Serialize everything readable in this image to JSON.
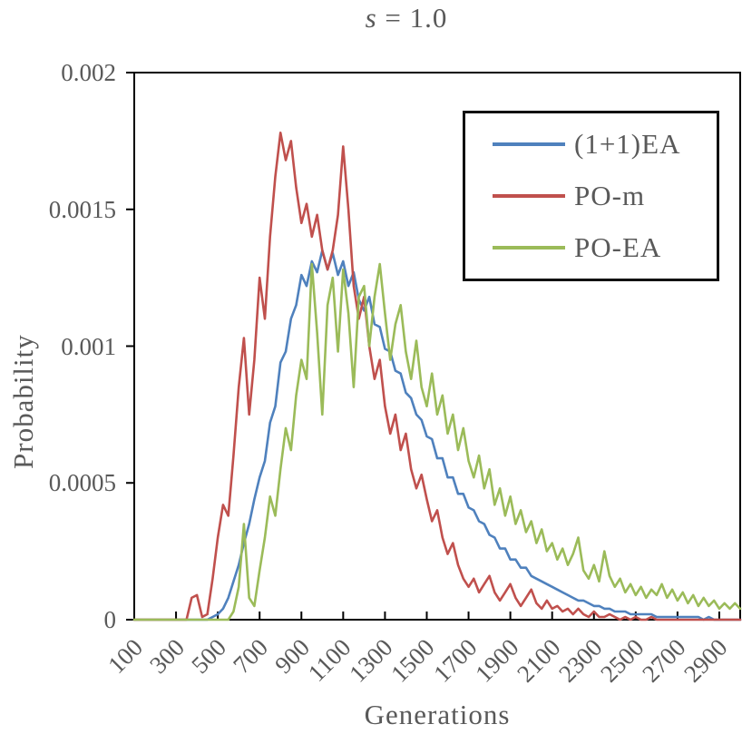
{
  "title": {
    "italic_part": "s",
    "rest_part": " = 1.0"
  },
  "colors": {
    "text": "#595959",
    "axis": "#000000",
    "background": "#ffffff"
  },
  "chart_data": {
    "type": "line",
    "title": "s = 1.0",
    "xlabel": "Generations",
    "ylabel": "Probability",
    "xlim": [
      100,
      3000
    ],
    "ylim": [
      0,
      0.002
    ],
    "grid": false,
    "legend_position": "top-right",
    "x_ticks": [
      100,
      300,
      500,
      700,
      900,
      1100,
      1300,
      1500,
      1700,
      1900,
      2100,
      2300,
      2500,
      2700,
      2900
    ],
    "y_ticks": {
      "values": [
        0,
        0.0005,
        0.001,
        0.0015,
        0.002
      ],
      "labels": [
        "0",
        "0.0005",
        "0.001",
        "0.0015",
        "0.002"
      ]
    },
    "value_scale": 1e-05,
    "x": [
      100,
      125,
      150,
      175,
      200,
      225,
      250,
      275,
      300,
      325,
      350,
      375,
      400,
      425,
      450,
      475,
      500,
      525,
      550,
      575,
      600,
      625,
      650,
      675,
      700,
      725,
      750,
      775,
      800,
      825,
      850,
      875,
      900,
      925,
      950,
      975,
      1000,
      1025,
      1050,
      1075,
      1100,
      1125,
      1150,
      1175,
      1200,
      1225,
      1250,
      1275,
      1300,
      1325,
      1350,
      1375,
      1400,
      1425,
      1450,
      1475,
      1500,
      1525,
      1550,
      1575,
      1600,
      1625,
      1650,
      1675,
      1700,
      1725,
      1750,
      1775,
      1800,
      1825,
      1850,
      1875,
      1900,
      1925,
      1950,
      1975,
      2000,
      2025,
      2050,
      2075,
      2100,
      2125,
      2150,
      2175,
      2200,
      2225,
      2250,
      2275,
      2300,
      2325,
      2350,
      2375,
      2400,
      2425,
      2450,
      2475,
      2500,
      2525,
      2550,
      2575,
      2600,
      2625,
      2650,
      2675,
      2700,
      2725,
      2750,
      2775,
      2800,
      2825,
      2850,
      2875,
      2900,
      2925,
      2950,
      2975,
      3000
    ],
    "series": [
      {
        "name": "(1+1)EA",
        "color": "#4F81BD",
        "values": [
          0,
          0,
          0,
          0,
          0,
          0,
          0,
          0,
          0,
          0,
          0,
          0,
          0,
          0,
          0,
          1,
          2,
          4,
          8,
          14,
          20,
          28,
          35,
          44,
          52,
          58,
          72,
          78,
          94,
          98,
          110,
          115,
          126,
          122,
          131,
          127,
          135,
          128,
          134,
          126,
          131,
          122,
          127,
          117,
          113,
          118,
          108,
          107,
          99,
          98,
          91,
          90,
          83,
          81,
          75,
          73,
          67,
          66,
          59,
          59,
          52,
          52,
          46,
          46,
          41,
          40,
          36,
          35,
          31,
          30,
          26,
          26,
          22,
          22,
          19,
          19,
          16,
          15,
          14,
          13,
          12,
          11,
          10,
          9,
          8,
          7,
          7,
          6,
          5,
          5,
          4,
          4,
          3,
          3,
          3,
          2,
          2,
          2,
          2,
          2,
          1,
          1,
          1,
          1,
          1,
          1,
          1,
          1,
          1,
          0,
          1,
          0,
          0,
          0,
          0,
          0,
          0
        ]
      },
      {
        "name": "PO-m",
        "color": "#C0504D",
        "values": [
          0,
          0,
          0,
          0,
          0,
          0,
          0,
          0,
          0,
          0,
          0,
          8,
          9,
          1,
          2,
          15,
          30,
          42,
          38,
          60,
          85,
          103,
          75,
          95,
          125,
          110,
          140,
          162,
          178,
          168,
          175,
          158,
          145,
          152,
          140,
          148,
          135,
          128,
          135,
          148,
          173,
          150,
          122,
          110,
          118,
          100,
          88,
          95,
          78,
          68,
          75,
          62,
          68,
          55,
          48,
          53,
          44,
          36,
          40,
          30,
          24,
          28,
          20,
          15,
          12,
          15,
          10,
          13,
          16,
          10,
          7,
          10,
          13,
          8,
          5,
          8,
          11,
          6,
          4,
          7,
          4,
          5,
          3,
          4,
          2,
          4,
          2,
          1,
          3,
          1,
          1,
          2,
          1,
          0,
          1,
          0,
          1,
          0,
          0,
          1,
          0,
          0,
          0,
          0,
          0,
          0,
          0,
          0,
          0,
          0,
          0,
          0,
          0,
          0,
          0,
          0,
          0
        ]
      },
      {
        "name": "PO-EA",
        "color": "#9BBB59",
        "values": [
          0,
          0,
          0,
          0,
          0,
          0,
          0,
          0,
          0,
          0,
          0,
          0,
          0,
          0,
          0,
          0,
          0,
          0,
          0,
          3,
          12,
          35,
          8,
          5,
          18,
          30,
          45,
          38,
          55,
          70,
          62,
          82,
          95,
          88,
          130,
          105,
          75,
          115,
          125,
          98,
          128,
          112,
          85,
          118,
          122,
          100,
          118,
          130,
          112,
          95,
          108,
          115,
          98,
          88,
          102,
          85,
          78,
          90,
          75,
          82,
          68,
          75,
          62,
          70,
          58,
          52,
          60,
          48,
          55,
          42,
          48,
          38,
          45,
          35,
          40,
          32,
          36,
          28,
          33,
          25,
          28,
          22,
          26,
          20,
          24,
          30,
          18,
          15,
          20,
          14,
          25,
          16,
          12,
          15,
          10,
          13,
          9,
          12,
          8,
          11,
          9,
          13,
          8,
          11,
          7,
          10,
          6,
          9,
          5,
          8,
          5,
          7,
          4,
          6,
          4,
          6,
          4
        ]
      }
    ]
  }
}
